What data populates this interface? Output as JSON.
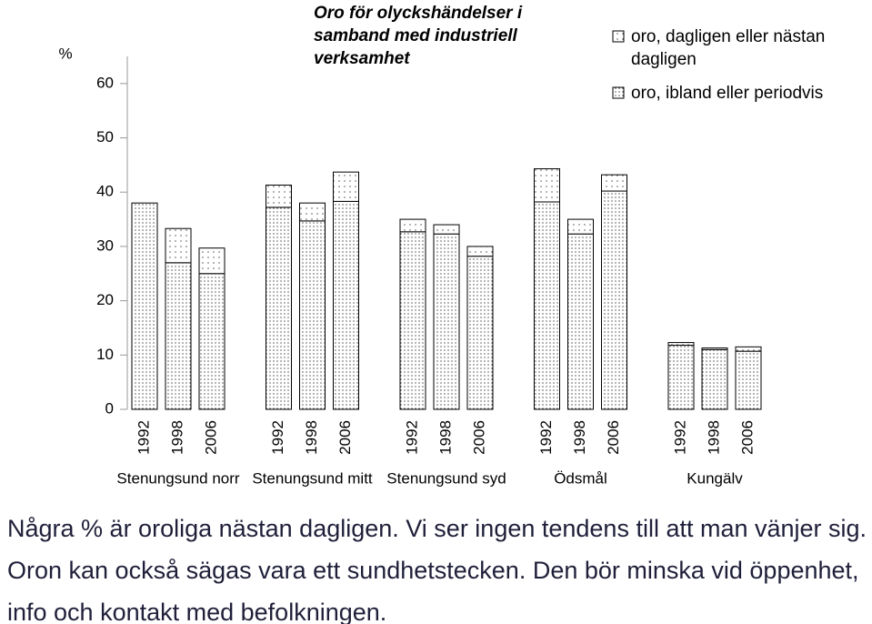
{
  "chart_data": {
    "type": "stacked-grouped-bar",
    "title": "Oro för olyckshändelser i samband med industriell verksamhet",
    "ylabel": "%",
    "groups": [
      "Stenungsund norr",
      "Stenungsund mitt",
      "Stenungsund syd",
      "Ödsmål",
      "Kungälv"
    ],
    "categories": [
      "1992",
      "1998",
      "2006",
      "1992",
      "1998",
      "2006",
      "1992",
      "1998",
      "2006",
      "1992",
      "1998",
      "2006",
      "1992",
      "1998",
      "2006"
    ],
    "series": [
      {
        "name": "oro, dagligen eller nästan dagligen",
        "color": "#000000",
        "values": [
          0,
          6.3,
          4.7,
          4.1,
          3.3,
          5.4,
          2.3,
          1.7,
          1.8,
          6.1,
          2.7,
          3.0,
          0.5,
          0.3,
          0.8
        ]
      },
      {
        "name": "oro, ibland eller periodvis",
        "color": "#000000",
        "values": [
          38,
          27,
          25,
          37.2,
          34.7,
          38.3,
          32.7,
          32.3,
          28.2,
          38.2,
          32.3,
          40.2,
          11.8,
          11.0,
          10.7
        ]
      }
    ],
    "ylim": [
      0,
      65
    ],
    "yticks": [
      0,
      10,
      20,
      30,
      40,
      50,
      60
    ]
  },
  "annotation": "Några % är oroliga nästan dagligen. Vi ser ingen tendens till att man vänjer sig. Oron kan också sägas vara ett sundhetstecken. Den bör minska vid öppenhet, info och kontakt  med befolkningen."
}
